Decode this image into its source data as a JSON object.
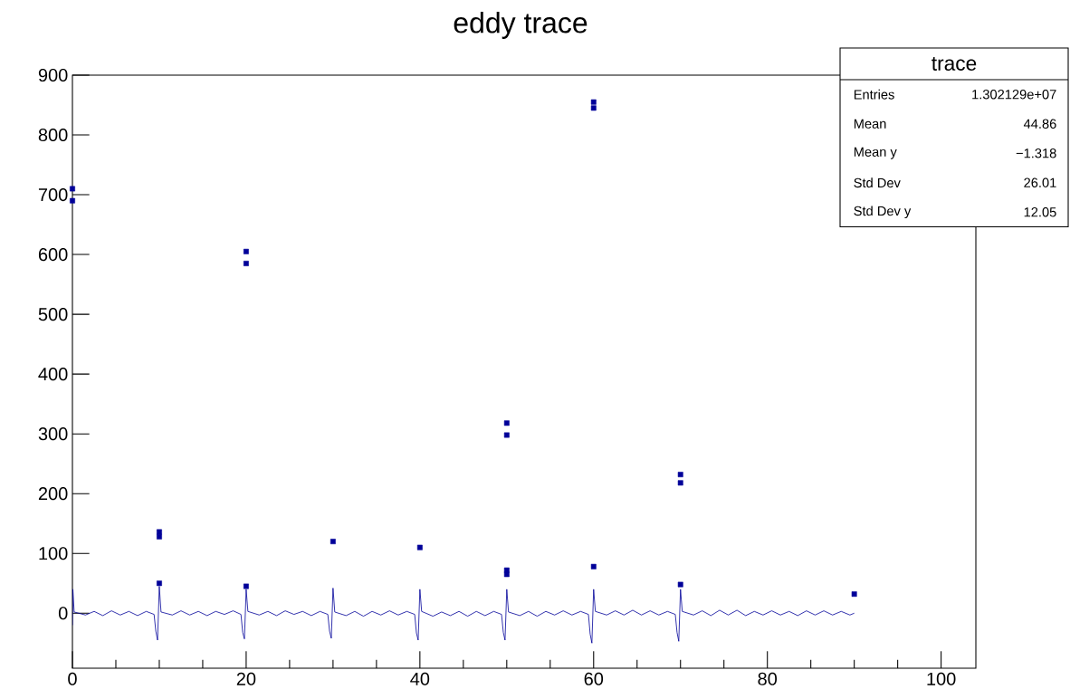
{
  "chart_data": {
    "type": "scatter",
    "title": "eddy trace",
    "xlim": [
      0,
      104
    ],
    "ylim": [
      -92,
      900
    ],
    "xticks": [
      0,
      20,
      40,
      60,
      80,
      100
    ],
    "yticks": [
      0,
      100,
      200,
      300,
      400,
      500,
      600,
      700,
      800,
      900
    ],
    "grid": false,
    "annotations": [
      "trace",
      "Entries",
      "1.302129e+07",
      "Mean",
      "44.86",
      "Mean y",
      "−1.318",
      "Std Dev",
      "26.01",
      "Std Dev y",
      "12.05"
    ],
    "series": [
      {
        "type": "line",
        "marker": "none",
        "color": "#000099",
        "x": [
          0,
          0.05,
          0.2,
          1.5,
          2.5,
          3.5,
          4.5,
          5.5,
          6.5,
          7.5,
          8.5,
          9.4,
          9.6,
          9.8,
          10,
          10.2,
          11.5,
          12.5,
          13.5,
          14.5,
          15.5,
          16.5,
          17.5,
          18.5,
          19.4,
          19.6,
          19.8,
          20,
          20.2,
          21.5,
          22.5,
          23.5,
          24.5,
          25.5,
          26.5,
          27.5,
          28.5,
          29.4,
          29.6,
          29.8,
          30,
          30.2,
          31.5,
          32.5,
          33.5,
          34.5,
          35.5,
          36.5,
          37.5,
          38.5,
          39.4,
          39.6,
          39.8,
          40,
          40.2,
          41.5,
          42.5,
          43.5,
          44.5,
          45.5,
          46.5,
          47.5,
          48.5,
          49.4,
          49.6,
          49.8,
          50,
          50.2,
          51.5,
          52.5,
          53.5,
          54.5,
          55.5,
          56.5,
          57.5,
          58.5,
          59.4,
          59.6,
          59.8,
          60,
          60.2,
          61.5,
          62.5,
          63.5,
          64.5,
          65.5,
          66.5,
          67.5,
          68.5,
          69.4,
          69.6,
          69.8,
          70,
          70.2,
          71.5,
          72.5,
          73.5,
          74.5,
          75.5,
          76.5,
          77.5,
          78.5,
          79.5,
          80.5,
          81.5,
          82.5,
          83.5,
          84.5,
          85.5,
          86.5,
          87.5,
          88.5,
          89.5,
          90
        ],
        "values": [
          -20,
          40,
          2,
          -3,
          3,
          -4,
          4,
          -3,
          3,
          -4,
          3,
          -2,
          -30,
          -45,
          45,
          2,
          -3,
          4,
          -3,
          3,
          -4,
          3,
          -2,
          4,
          -2,
          -32,
          -43,
          40,
          3,
          -3,
          3,
          -4,
          4,
          -2,
          3,
          -4,
          3,
          -2,
          -30,
          -42,
          42,
          2,
          -4,
          3,
          -5,
          3,
          -3,
          4,
          -3,
          3,
          -2,
          -33,
          -45,
          40,
          3,
          -5,
          2,
          -4,
          3,
          -5,
          3,
          -4,
          3,
          -2,
          -32,
          -45,
          40,
          2,
          -4,
          3,
          -5,
          3,
          -3,
          4,
          -3,
          3,
          -2,
          -35,
          -50,
          40,
          3,
          -3,
          4,
          -3,
          5,
          -3,
          4,
          -3,
          3,
          -2,
          -32,
          -47,
          40,
          3,
          -3,
          4,
          -4,
          5,
          -3,
          5,
          -4,
          3,
          -3,
          4,
          -3,
          3,
          -4,
          4,
          -3,
          4,
          -3,
          3,
          -3,
          0
        ]
      },
      {
        "marker": "square",
        "color": "#000099",
        "x": [
          0,
          0,
          10,
          10,
          10,
          20,
          20,
          20,
          30,
          40,
          50,
          50,
          50,
          50,
          60,
          60,
          60,
          70,
          70,
          70,
          90
        ],
        "values": [
          690,
          710,
          128,
          136,
          50,
          585,
          605,
          45,
          120,
          110,
          298,
          318,
          72,
          65,
          845,
          855,
          78,
          218,
          232,
          48,
          32
        ]
      }
    ]
  }
}
